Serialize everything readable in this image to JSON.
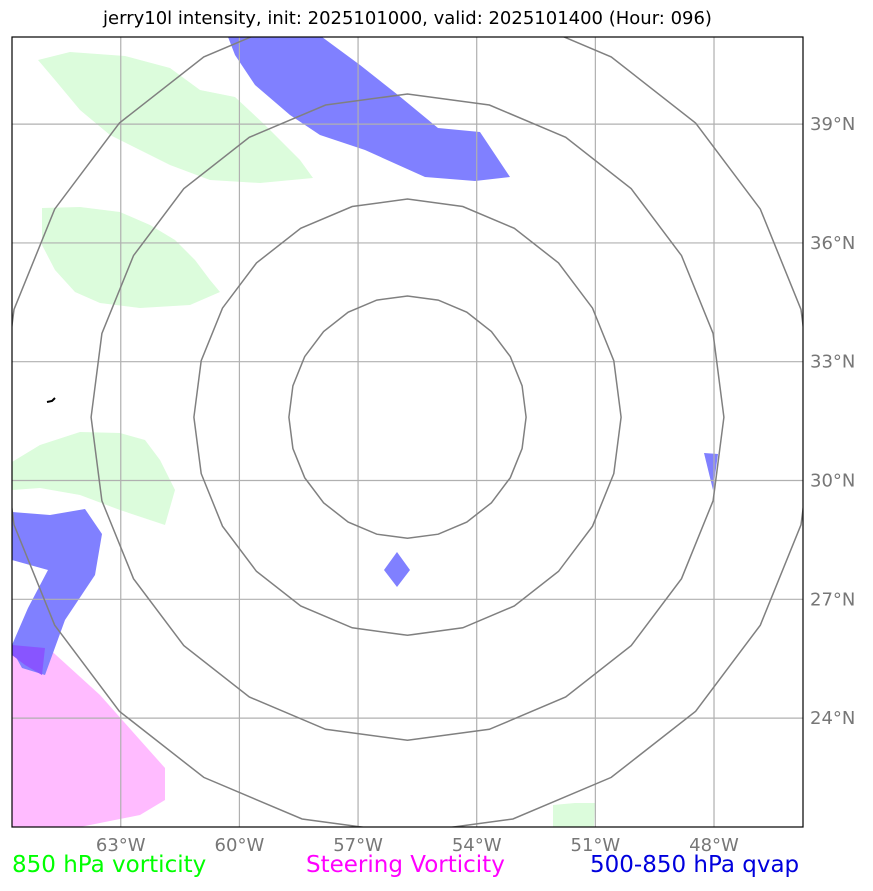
{
  "title": "jerry10l intensity, init: 2025101000, valid: 2025101400 (Hour: 096)",
  "map": {
    "lon_range": [
      -65.75,
      -45.75
    ],
    "lat_range": [
      21.25,
      41.2
    ],
    "lon_ticks": [
      {
        "value": -63,
        "label": "63°W"
      },
      {
        "value": -60,
        "label": "60°W"
      },
      {
        "value": -57,
        "label": "57°W"
      },
      {
        "value": -54,
        "label": "54°W"
      },
      {
        "value": -51,
        "label": "51°W"
      },
      {
        "value": -48,
        "label": "48°W"
      }
    ],
    "lat_ticks": [
      {
        "value": 39,
        "label": "39°N"
      },
      {
        "value": 36,
        "label": "36°N"
      },
      {
        "value": 33,
        "label": "33°N"
      },
      {
        "value": 30,
        "label": "30°N"
      },
      {
        "value": 27,
        "label": "27°N"
      },
      {
        "value": 24,
        "label": "24°N"
      }
    ],
    "storm_center": {
      "lon": -55.75,
      "lat": 31.6
    },
    "range_rings_deg": [
      3.0,
      5.4,
      8.0,
      10.3
    ],
    "colors": {
      "vorticity_850": "#dcfcdc",
      "steering_vorticity": "#ffbbff",
      "qvap": "#8080ff",
      "overlap": "#8855ff",
      "rings": "#808080",
      "grid": "#b0b0b0"
    }
  },
  "legend": {
    "vorticity_850": {
      "label": "850 hPa vorticity",
      "color": "#00ff00"
    },
    "steering_vorticity": {
      "label": "Steering Vorticity",
      "color": "#ff00ff"
    },
    "qvap": {
      "label": "500-850 hPa qvap",
      "color": "#0000dd"
    }
  }
}
